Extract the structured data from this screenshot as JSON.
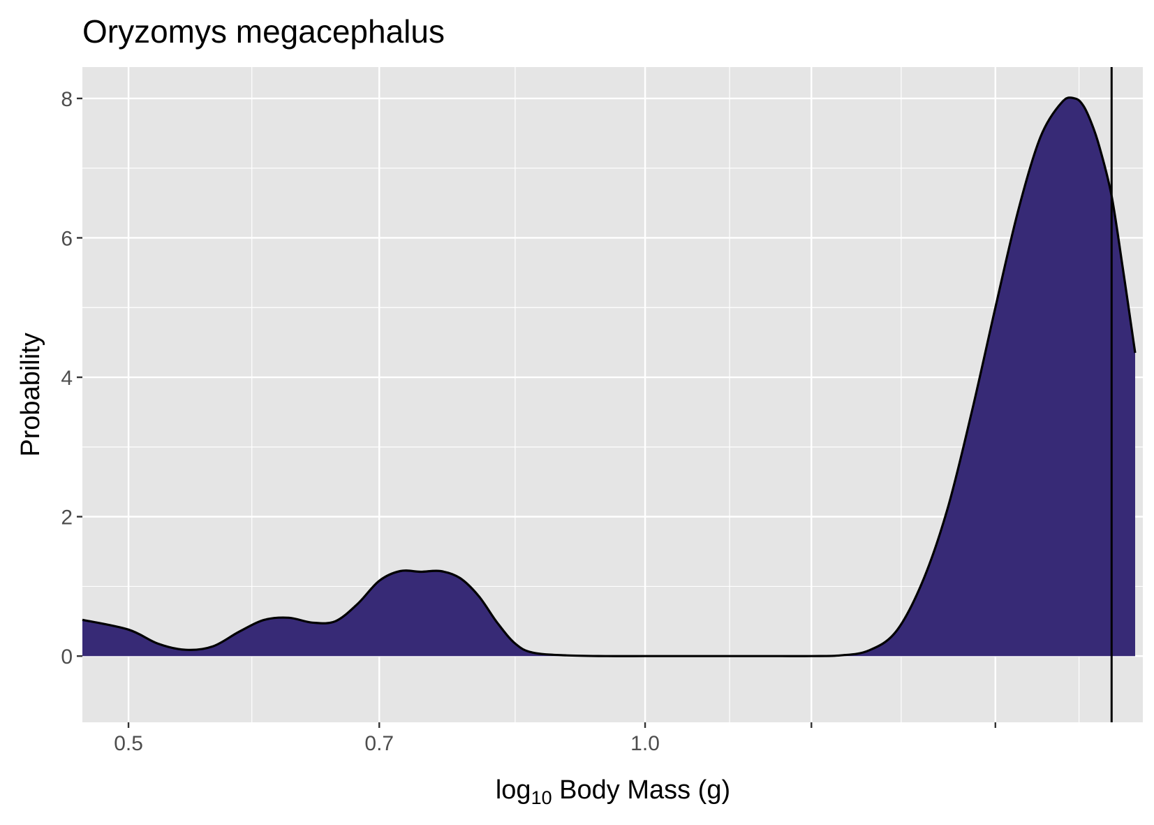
{
  "chart_data": {
    "type": "area",
    "title": "Oryzomys megacephalus",
    "xlabel": {
      "prefix": "log",
      "subscript": "10",
      "suffix": " Body Mass (g)"
    },
    "ylabel": "Probability",
    "x_scale": "log",
    "xlim": [
      0.47,
      1.95
    ],
    "ylim": [
      -0.95,
      8.45
    ],
    "x_ticks": [
      {
        "value": 0.5,
        "label": "0.5"
      },
      {
        "value": 0.7,
        "label": "0.7"
      },
      {
        "value": 1.0,
        "label": "1.0"
      },
      {
        "value": 1.25,
        "label": ""
      },
      {
        "value": 1.6,
        "label": ""
      }
    ],
    "x_minor_ticks": [
      0.59,
      0.84,
      1.12,
      1.41,
      1.79
    ],
    "y_ticks": [
      {
        "value": 0,
        "label": "0"
      },
      {
        "value": 2,
        "label": "2"
      },
      {
        "value": 4,
        "label": "4"
      },
      {
        "value": 6,
        "label": "6"
      },
      {
        "value": 8,
        "label": "8"
      }
    ],
    "y_minor_ticks": [
      1,
      3,
      5,
      7
    ],
    "grid": true,
    "reference_line_x": 1.87,
    "series": [
      {
        "fill": "#372a76",
        "stroke": "#000000",
        "x": [
          0.47,
          0.5,
          0.52,
          0.54,
          0.56,
          0.58,
          0.6,
          0.62,
          0.64,
          0.66,
          0.68,
          0.7,
          0.72,
          0.74,
          0.76,
          0.78,
          0.8,
          0.82,
          0.84,
          0.86,
          0.9,
          0.95,
          1.0,
          1.05,
          1.1,
          1.15,
          1.2,
          1.25,
          1.3,
          1.35,
          1.4,
          1.45,
          1.5,
          1.55,
          1.6,
          1.65,
          1.7,
          1.75,
          1.78,
          1.8,
          1.82,
          1.84,
          1.87,
          1.9,
          1.93
        ],
        "y": [
          0.52,
          0.38,
          0.18,
          0.09,
          0.14,
          0.35,
          0.52,
          0.55,
          0.48,
          0.5,
          0.75,
          1.08,
          1.22,
          1.21,
          1.22,
          1.12,
          0.86,
          0.48,
          0.18,
          0.05,
          0.01,
          0.0,
          0.0,
          0.0,
          0.0,
          0.0,
          0.0,
          0.0,
          0.01,
          0.08,
          0.35,
          1.05,
          2.1,
          3.5,
          5.0,
          6.4,
          7.45,
          7.95,
          8.0,
          7.9,
          7.65,
          7.3,
          6.6,
          5.5,
          4.35
        ]
      }
    ]
  }
}
